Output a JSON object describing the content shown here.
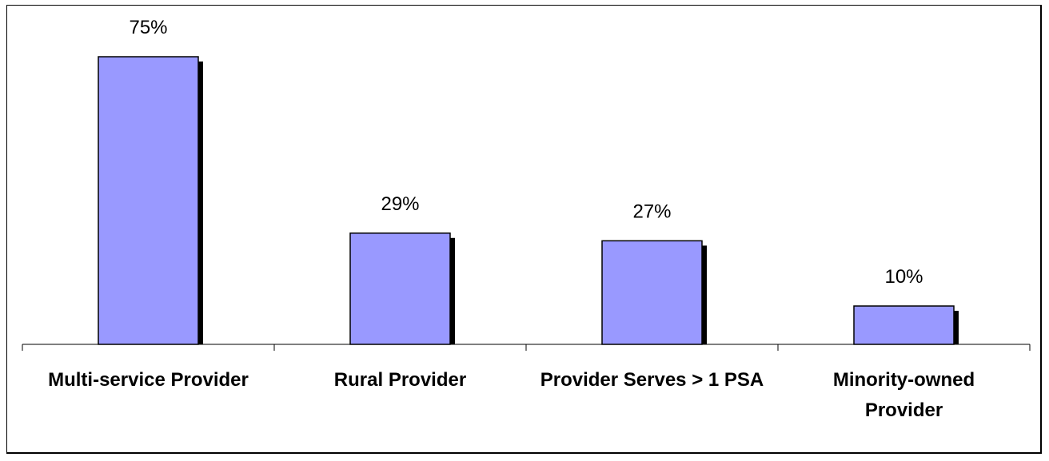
{
  "chart_data": {
    "type": "bar",
    "categories": [
      [
        "Multi-service Provider"
      ],
      [
        "Rural Provider"
      ],
      [
        "Provider Serves > 1 PSA"
      ],
      [
        "Minority-owned",
        "Provider"
      ]
    ],
    "values": [
      75,
      29,
      27,
      10
    ],
    "value_labels": [
      "75%",
      "29%",
      "27%",
      "10%"
    ],
    "title": "",
    "xlabel": "",
    "ylabel": "",
    "ylim": [
      0,
      100
    ],
    "grid": false,
    "legend": "none",
    "colors": {
      "bar_fill": "#9999FF",
      "bar_outline": "#000000",
      "bar_shadow": "#000000"
    }
  }
}
